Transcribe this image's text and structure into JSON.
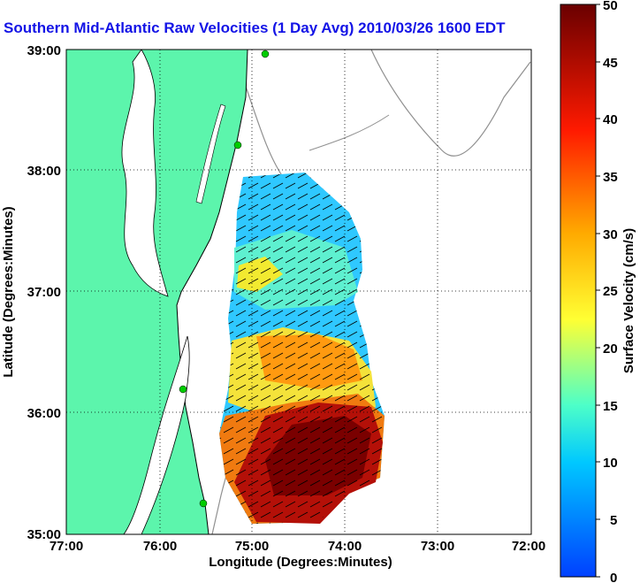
{
  "title": "Southern Mid-Atlantic Raw Velocities (1 Day Avg) 2010/03/26 1600 EDT",
  "map": {
    "xlabel": "Longitude (Degrees:Minutes)",
    "ylabel": "Latitude (Degrees:Minutes)",
    "lon_ticks": [
      "77:00",
      "76:00",
      "75:00",
      "74:00",
      "73:00",
      "72:00"
    ],
    "lat_ticks": [
      "39:00",
      "38:00",
      "37:00",
      "36:00",
      "35:00"
    ],
    "land_color": "#5cf5ac",
    "water_color": "#ffffff",
    "grid": "dotted"
  },
  "colorbar": {
    "label": "Surface Velocity (cm/s)",
    "ticks": [
      "50",
      "45",
      "40",
      "35",
      "30",
      "25",
      "20",
      "15",
      "10",
      "5",
      "0"
    ],
    "min": 0,
    "max": 50,
    "colormap": "jet"
  },
  "chart_data": {
    "type": "heatmap",
    "title": "Southern Mid-Atlantic Raw Velocities (1 Day Avg) 2010/03/26 1600 EDT",
    "xlabel": "Longitude (Degrees:Minutes)",
    "ylabel": "Latitude (Degrees:Minutes)",
    "xlim": [
      "77:00 W",
      "72:00 W"
    ],
    "ylim": [
      "35:00 N",
      "39:00 N"
    ],
    "colorbar_label": "Surface Velocity (cm/s)",
    "colorbar_range": [
      0,
      50
    ],
    "regions": [
      {
        "area": "north (37:30-38:00 N)",
        "speed_cm_s": 12
      },
      {
        "area": "central (37:00-37:30 N)",
        "speed_cm_s": 20
      },
      {
        "area": "36:30-37:00 N",
        "speed_cm_s": 16
      },
      {
        "area": "36:00-36:30 N",
        "speed_cm_s": 30
      },
      {
        "area": "35:00-36:00 N",
        "speed_cm_s": 48
      }
    ]
  }
}
